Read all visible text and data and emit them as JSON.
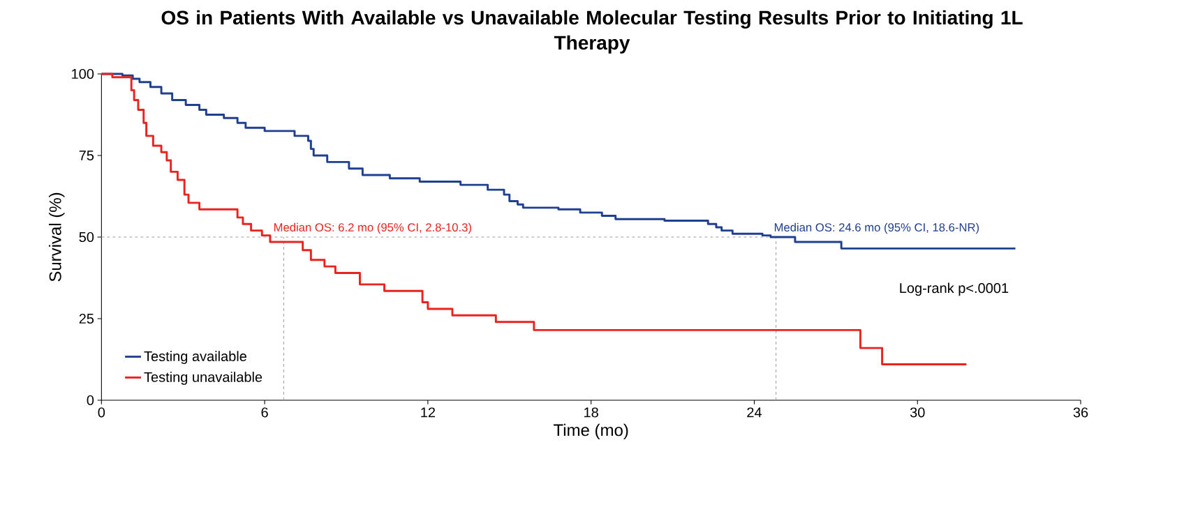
{
  "chart_data": {
    "type": "step",
    "title": "OS in Patients With Available vs Unavailable Molecular Testing Results Prior to Initiating 1L Therapy",
    "xlabel": "Time (mo)",
    "ylabel": "Survival (%)",
    "xlim": [
      0,
      36
    ],
    "xticks": [
      0,
      6,
      12,
      18,
      24,
      30,
      36
    ],
    "ylim": [
      0,
      100
    ],
    "yticks": [
      0,
      25,
      50,
      75,
      100
    ],
    "grid": false,
    "legend": "bottom left",
    "line_style": "solid",
    "series": [
      {
        "name": "Testing available",
        "color": "#1f3f8f",
        "x": [
          0,
          0.77,
          1.15,
          1.4,
          1.8,
          2.2,
          2.6,
          3.1,
          3.6,
          3.85,
          4.5,
          5,
          5.3,
          6,
          7.1,
          7.6,
          7.7,
          7.8,
          8.3,
          9.1,
          9.6,
          10.6,
          11.7,
          13.2,
          14.2,
          14.8,
          15,
          15.3,
          15.5,
          16.8,
          17.6,
          18.4,
          18.9,
          20.7,
          22.3,
          22.6,
          22.8,
          23.2,
          24.3,
          24.6,
          25.5,
          27.2,
          33.6
        ],
        "values": [
          100,
          99.5,
          98.5,
          97.5,
          96,
          94,
          92,
          90.5,
          89,
          87.5,
          86.5,
          85,
          83.5,
          82.5,
          81,
          79.5,
          77,
          75,
          73,
          71,
          69,
          68,
          67,
          66,
          64.5,
          63,
          61,
          60,
          59,
          58.5,
          57.5,
          56.5,
          55.5,
          55,
          54,
          53,
          52,
          51,
          50.5,
          50,
          48.5,
          46.5,
          46.5
        ]
      },
      {
        "name": "Testing unavailable",
        "color": "#e8241e",
        "x": [
          0,
          0.4,
          1.1,
          1.2,
          1.35,
          1.55,
          1.65,
          1.9,
          2.2,
          2.4,
          2.55,
          2.8,
          3.05,
          3.2,
          3.6,
          5.0,
          5.2,
          5.5,
          5.9,
          6.2,
          7.4,
          7.7,
          8.2,
          8.6,
          9.5,
          10.4,
          11.8,
          12,
          12.9,
          14.5,
          15.9,
          27.9,
          28.7,
          31.8
        ],
        "values": [
          100,
          99,
          95,
          92,
          89,
          85,
          81,
          78,
          76,
          73.5,
          70,
          67.5,
          63,
          60.5,
          58.5,
          56,
          54,
          52,
          50.5,
          48.5,
          46,
          43,
          41,
          39,
          35.5,
          33.5,
          30,
          28,
          26,
          24,
          21.5,
          16,
          11,
          11
        ]
      }
    ],
    "ref_lines": [
      {
        "axis": "y",
        "value": 50,
        "color": "#a0a0a0",
        "line_style": "dashed"
      },
      {
        "axis": "x",
        "value": 6.7,
        "color": "#a0a0a0",
        "line_style": "dashed"
      },
      {
        "axis": "x",
        "value": 24.8,
        "color": "#a0a0a0",
        "line_style": "dashed"
      }
    ],
    "annotations": [
      {
        "text": "Median OS: 6.2 mo (95% CI, 2.8-10.3)",
        "x": 6.2,
        "y": 50
      },
      {
        "text": "Median OS: 24.6 mo (95% CI, 18.6-NR)",
        "x": 24.6,
        "y": 50
      },
      "Log-rank p<.0001"
    ]
  }
}
